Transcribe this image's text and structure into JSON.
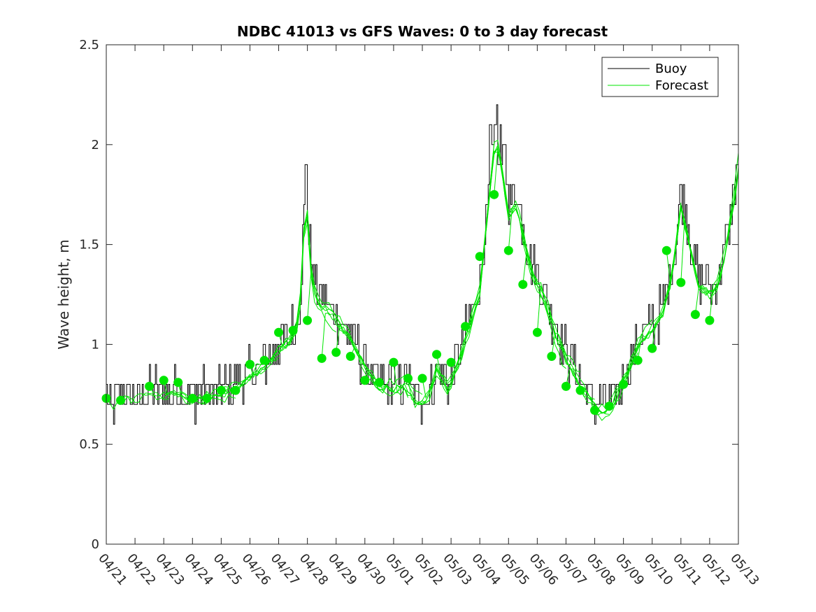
{
  "chart_data": {
    "type": "line",
    "title": "NDBC 41013 vs GFS Waves: 0 to 3 day forecast",
    "xlabel": "",
    "ylabel": "Wave height, m",
    "x_start_date": "04/21",
    "xlim": [
      0,
      22
    ],
    "ylim": [
      0,
      2.5
    ],
    "x_ticks": [
      0,
      1,
      2,
      3,
      4,
      5,
      6,
      7,
      8,
      9,
      10,
      11,
      12,
      13,
      14,
      15,
      16,
      17,
      18,
      19,
      20,
      21,
      22
    ],
    "x_tick_labels": [
      "04/21",
      "04/22",
      "04/23",
      "04/24",
      "04/25",
      "04/26",
      "04/27",
      "04/28",
      "04/29",
      "04/30",
      "05/01",
      "05/02",
      "05/03",
      "05/04",
      "05/05",
      "05/06",
      "05/07",
      "05/08",
      "05/09",
      "05/10",
      "05/11",
      "05/12",
      "05/13"
    ],
    "y_ticks": [
      0,
      0.5,
      1,
      1.5,
      2,
      2.5
    ],
    "y_tick_labels": [
      "0",
      "0.5",
      "1",
      "1.5",
      "2",
      "2.5"
    ],
    "legend": {
      "position": "top-right",
      "entries": [
        {
          "label": "Buoy",
          "color": "#000000"
        },
        {
          "label": "Forecast",
          "color": "#00e600"
        }
      ]
    },
    "colors": {
      "buoy": "#000000",
      "forecast": "#00e600",
      "markers": "#00e600"
    },
    "buoy_anchors": [
      [
        0,
        0.72
      ],
      [
        0.3,
        0.7
      ],
      [
        0.6,
        0.75
      ],
      [
        1,
        0.74
      ],
      [
        1.5,
        0.78
      ],
      [
        2,
        0.76
      ],
      [
        2.5,
        0.78
      ],
      [
        3,
        0.74
      ],
      [
        3.5,
        0.76
      ],
      [
        4,
        0.78
      ],
      [
        4.5,
        0.8
      ],
      [
        5,
        0.86
      ],
      [
        5.5,
        0.92
      ],
      [
        6,
        1.0
      ],
      [
        6.4,
        1.05
      ],
      [
        6.7,
        1.15
      ],
      [
        6.85,
        1.5
      ],
      [
        6.95,
        1.9
      ],
      [
        7.05,
        1.5
      ],
      [
        7.3,
        1.25
      ],
      [
        7.7,
        1.2
      ],
      [
        8,
        1.15
      ],
      [
        8.5,
        1.05
      ],
      [
        9,
        0.9
      ],
      [
        9.5,
        0.8
      ],
      [
        10,
        0.8
      ],
      [
        10.4,
        0.82
      ],
      [
        10.8,
        0.72
      ],
      [
        11.2,
        0.75
      ],
      [
        11.5,
        0.9
      ],
      [
        11.9,
        0.8
      ],
      [
        12.3,
        0.95
      ],
      [
        12.6,
        1.1
      ],
      [
        13,
        1.3
      ],
      [
        13.2,
        1.6
      ],
      [
        13.4,
        1.9
      ],
      [
        13.55,
        2.1
      ],
      [
        13.7,
        2.0
      ],
      [
        14,
        1.7
      ],
      [
        14.3,
        1.75
      ],
      [
        14.5,
        1.6
      ],
      [
        14.8,
        1.4
      ],
      [
        15.2,
        1.3
      ],
      [
        15.6,
        1.1
      ],
      [
        16,
        0.95
      ],
      [
        16.4,
        0.85
      ],
      [
        16.8,
        0.75
      ],
      [
        17.2,
        0.68
      ],
      [
        17.5,
        0.7
      ],
      [
        17.8,
        0.78
      ],
      [
        18.2,
        0.9
      ],
      [
        18.6,
        1.05
      ],
      [
        19,
        1.1
      ],
      [
        19.4,
        1.2
      ],
      [
        19.7,
        1.4
      ],
      [
        20,
        1.75
      ],
      [
        20.3,
        1.55
      ],
      [
        20.6,
        1.35
      ],
      [
        21,
        1.3
      ],
      [
        21.3,
        1.35
      ],
      [
        21.6,
        1.55
      ],
      [
        22,
        1.95
      ]
    ],
    "forecast_markers": [
      [
        0,
        0.73
      ],
      [
        0.5,
        0.72
      ],
      [
        1.5,
        0.79
      ],
      [
        2,
        0.82
      ],
      [
        2.5,
        0.81
      ],
      [
        3,
        0.73
      ],
      [
        3.5,
        0.73
      ],
      [
        4,
        0.77
      ],
      [
        4.5,
        0.77
      ],
      [
        5,
        0.9
      ],
      [
        5.5,
        0.92
      ],
      [
        6,
        1.06
      ],
      [
        6.5,
        1.07
      ],
      [
        7,
        1.12
      ],
      [
        7.5,
        0.93
      ],
      [
        8,
        0.96
      ],
      [
        8.5,
        0.94
      ],
      [
        9,
        0.82
      ],
      [
        9.5,
        0.81
      ],
      [
        10,
        0.91
      ],
      [
        10.5,
        0.83
      ],
      [
        11,
        0.83
      ],
      [
        11.5,
        0.95
      ],
      [
        12,
        0.91
      ],
      [
        12.5,
        1.09
      ],
      [
        13,
        1.44
      ],
      [
        13.5,
        1.75
      ],
      [
        14,
        1.47
      ],
      [
        14.5,
        1.3
      ],
      [
        15,
        1.06
      ],
      [
        15.5,
        0.94
      ],
      [
        16,
        0.79
      ],
      [
        16.5,
        0.77
      ],
      [
        17,
        0.67
      ],
      [
        17.5,
        0.69
      ],
      [
        18,
        0.8
      ],
      [
        18.5,
        0.92
      ],
      [
        19,
        0.98
      ],
      [
        19.5,
        1.47
      ],
      [
        20,
        1.31
      ],
      [
        20.5,
        1.15
      ],
      [
        21,
        1.12
      ]
    ]
  }
}
